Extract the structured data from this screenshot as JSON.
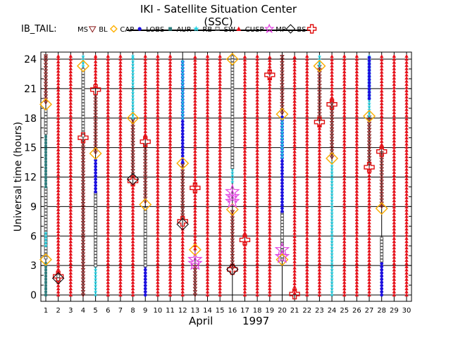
{
  "title": "IKI - Satellite Situation Center (SSC)",
  "satellite": "IB_TAIL:",
  "legend": [
    {
      "label": "MS",
      "symbol": "triangle-down",
      "color": "#8b1a1a"
    },
    {
      "label": "BL",
      "symbol": "diamond",
      "color": "#ffb000"
    },
    {
      "label": "CAP",
      "symbol": "dot",
      "color": "#1c10e0"
    },
    {
      "label": "LOBS",
      "symbol": "square-small",
      "color": "#2e7d7d"
    },
    {
      "label": "AUR",
      "symbol": "star",
      "color": "#22cfe0"
    },
    {
      "label": "RB",
      "symbol": "square-open",
      "color": "#555555"
    },
    {
      "label": "SW",
      "symbol": "triangle-up",
      "color": "#e8101a"
    },
    {
      "label": "CUSP",
      "symbol": "star-open",
      "color": "#e040e0"
    },
    {
      "label": "MP",
      "symbol": "diamond-open",
      "color": "#000000"
    },
    {
      "label": "BS",
      "symbol": "cross-open",
      "color": "#e01010"
    }
  ],
  "chart_data": {
    "type": "scatter",
    "title": "IKI - Satellite Situation Center (SSC)",
    "xlabel": "April",
    "xlabel_year": "1997",
    "ylabel": "Universal time  (hours)",
    "xlim": [
      1,
      30
    ],
    "ylim": [
      0,
      24
    ],
    "xticks": [
      1,
      2,
      3,
      4,
      5,
      6,
      7,
      8,
      9,
      10,
      11,
      12,
      13,
      14,
      15,
      16,
      17,
      18,
      19,
      20,
      21,
      22,
      23,
      24,
      25,
      26,
      27,
      28,
      29,
      30
    ],
    "yticks": [
      0,
      3,
      6,
      9,
      12,
      15,
      18,
      21,
      24
    ],
    "grid": true,
    "region_colors": {
      "MS": "#8b1a1a",
      "BL": "#ffb000",
      "CAP": "#1c10e0",
      "LOBS": "#2e7d7d",
      "AUR": "#22cfe0",
      "RB": "#555555",
      "SW": "#e8101a",
      "CUSP": "#e040e0",
      "MP": "#000000",
      "BS": "#e01010"
    },
    "tracks": [
      {
        "day": 1,
        "segments": [
          [
            "LOBS",
            0,
            3.5
          ],
          [
            "RB",
            3.8,
            11
          ],
          [
            "LOBS",
            11,
            16.5
          ],
          [
            "AUR",
            5,
            6.5
          ],
          [
            "RB",
            16.5,
            19
          ],
          [
            "MS",
            19.6,
            24.4
          ]
        ]
      },
      {
        "day": 2,
        "segments": [
          [
            "SW",
            0,
            1.5
          ],
          [
            "RB",
            1.6,
            2.2
          ],
          [
            "SW",
            2.3,
            24.4
          ]
        ]
      },
      {
        "day": 3,
        "segments": [
          [
            "SW",
            0,
            24.4
          ]
        ]
      },
      {
        "day": 4,
        "segments": [
          [
            "MS",
            0,
            15.8
          ],
          [
            "RB",
            16.2,
            23
          ],
          [
            "AUR",
            23.3,
            24.4
          ]
        ]
      },
      {
        "day": 5,
        "segments": [
          [
            "AUR",
            0,
            3
          ],
          [
            "RB",
            3,
            10.5
          ],
          [
            "CAP",
            10.5,
            14
          ],
          [
            "MS",
            14.5,
            20.5
          ],
          [
            "SW",
            21.2,
            24.4
          ]
        ]
      },
      {
        "day": 6,
        "segments": [
          [
            "SW",
            0,
            24.4
          ]
        ]
      },
      {
        "day": 7,
        "segments": [
          [
            "SW",
            0,
            24.4
          ]
        ]
      },
      {
        "day": 8,
        "segments": [
          [
            "SW",
            0,
            11.5
          ],
          [
            "MS",
            12,
            18
          ],
          [
            "AUR",
            18,
            24.4
          ]
        ]
      },
      {
        "day": 9,
        "segments": [
          [
            "CAP",
            0,
            3
          ],
          [
            "RB",
            3,
            9
          ],
          [
            "MS",
            9.5,
            15.5
          ],
          [
            "SW",
            16,
            24.4
          ]
        ]
      },
      {
        "day": 10,
        "segments": [
          [
            "SW",
            0,
            24.4
          ]
        ]
      },
      {
        "day": 11,
        "segments": [
          [
            "SW",
            0,
            24.4
          ]
        ]
      },
      {
        "day": 12,
        "segments": [
          [
            "SW",
            0,
            7
          ],
          [
            "MS",
            7.8,
            13.5
          ],
          [
            "CAP",
            13.5,
            23.8
          ],
          [
            "AUR",
            18,
            24
          ]
        ]
      },
      {
        "day": 13,
        "segments": [
          [
            "MS",
            0,
            3
          ],
          [
            "SW",
            4.7,
            24.4
          ]
        ]
      },
      {
        "day": 14,
        "segments": [
          [
            "SW",
            0,
            24.4
          ]
        ]
      },
      {
        "day": 15,
        "segments": [
          [
            "SW",
            0,
            24.4
          ]
        ]
      },
      {
        "day": 16,
        "segments": [
          [
            "MS",
            2.7,
            8.7
          ],
          [
            "AUR",
            11.5,
            13
          ],
          [
            "RB",
            13,
            24.2
          ]
        ]
      },
      {
        "day": 17,
        "segments": [
          [
            "SW",
            0,
            5.5
          ],
          [
            "SW",
            6,
            24.4
          ]
        ]
      },
      {
        "day": 18,
        "segments": [
          [
            "SW",
            0,
            24.4
          ]
        ]
      },
      {
        "day": 19,
        "segments": [
          [
            "SW",
            0,
            22.3
          ],
          [
            "SW",
            22.6,
            24.4
          ]
        ]
      },
      {
        "day": 20,
        "segments": [
          [
            "RB",
            3.6,
            8.5
          ],
          [
            "CAP",
            8.5,
            18.4
          ],
          [
            "AUR",
            14,
            18
          ],
          [
            "MS",
            18.5,
            24.4
          ]
        ]
      },
      {
        "day": 21,
        "segments": [
          [
            "SW",
            0.2,
            24.4
          ]
        ]
      },
      {
        "day": 22,
        "segments": [
          [
            "SW",
            0,
            24.4
          ]
        ]
      },
      {
        "day": 23,
        "segments": [
          [
            "SW",
            0,
            17.5
          ],
          [
            "MS",
            17.8,
            23.3
          ],
          [
            "AUR",
            23.3,
            24.4
          ]
        ]
      },
      {
        "day": 24,
        "segments": [
          [
            "AUR",
            0,
            13.5
          ],
          [
            "MS",
            14,
            19.5
          ],
          [
            "SW",
            19.8,
            24.4
          ]
        ]
      },
      {
        "day": 25,
        "segments": [
          [
            "SW",
            0,
            24.4
          ]
        ]
      },
      {
        "day": 26,
        "segments": [
          [
            "SW",
            0,
            24.4
          ]
        ]
      },
      {
        "day": 27,
        "segments": [
          [
            "SW",
            0,
            13
          ],
          [
            "MS",
            13.3,
            18.2
          ],
          [
            "AUR",
            18.2,
            24.4
          ],
          [
            "CAP",
            20,
            24.4
          ]
        ]
      },
      {
        "day": 28,
        "segments": [
          [
            "CAP",
            0,
            3.5
          ],
          [
            "RB",
            3.5,
            6
          ],
          [
            "MS",
            9,
            14.7
          ],
          [
            "SW",
            15,
            24.4
          ]
        ]
      },
      {
        "day": 29,
        "segments": [
          [
            "SW",
            0,
            24.4
          ]
        ]
      },
      {
        "day": 30,
        "segments": [
          [
            "SW",
            0,
            24.4
          ]
        ]
      }
    ],
    "markers": [
      {
        "day": 1,
        "ut": 3.6,
        "type": "MP"
      },
      {
        "day": 1,
        "ut": 3.6,
        "type": "BL"
      },
      {
        "day": 1,
        "ut": 19.4,
        "type": "MP"
      },
      {
        "day": 1,
        "ut": 19.4,
        "type": "BL"
      },
      {
        "day": 2,
        "ut": 1.9,
        "type": "BS"
      },
      {
        "day": 2,
        "ut": 1.7,
        "type": "MP"
      },
      {
        "day": 4,
        "ut": 16.0,
        "type": "BS"
      },
      {
        "day": 4,
        "ut": 23.3,
        "type": "MP"
      },
      {
        "day": 4,
        "ut": 23.3,
        "type": "BL"
      },
      {
        "day": 5,
        "ut": 14.4,
        "type": "MP"
      },
      {
        "day": 5,
        "ut": 14.4,
        "type": "BL"
      },
      {
        "day": 5,
        "ut": 20.9,
        "type": "BS"
      },
      {
        "day": 8,
        "ut": 11.6,
        "type": "BS"
      },
      {
        "day": 8,
        "ut": 11.8,
        "type": "MP"
      },
      {
        "day": 8,
        "ut": 18.0,
        "type": "MP"
      },
      {
        "day": 8,
        "ut": 18.0,
        "type": "BL"
      },
      {
        "day": 9,
        "ut": 9.2,
        "type": "MP"
      },
      {
        "day": 9,
        "ut": 9.2,
        "type": "BL"
      },
      {
        "day": 9,
        "ut": 15.6,
        "type": "BS"
      },
      {
        "day": 12,
        "ut": 7.5,
        "type": "BS"
      },
      {
        "day": 12,
        "ut": 7.2,
        "type": "MP"
      },
      {
        "day": 12,
        "ut": 13.4,
        "type": "MP"
      },
      {
        "day": 12,
        "ut": 13.4,
        "type": "BL"
      },
      {
        "day": 13,
        "ut": 3.2,
        "type": "CUSP"
      },
      {
        "day": 13,
        "ut": 3.6,
        "type": "CUSP"
      },
      {
        "day": 13,
        "ut": 4.6,
        "type": "MP"
      },
      {
        "day": 13,
        "ut": 4.6,
        "type": "BL"
      },
      {
        "day": 13,
        "ut": 10.9,
        "type": "BS"
      },
      {
        "day": 16,
        "ut": 2.6,
        "type": "BS"
      },
      {
        "day": 16,
        "ut": 2.6,
        "type": "MP"
      },
      {
        "day": 16,
        "ut": 8.7,
        "type": "MP"
      },
      {
        "day": 16,
        "ut": 8.7,
        "type": "BL"
      },
      {
        "day": 16,
        "ut": 9.5,
        "type": "CUSP"
      },
      {
        "day": 16,
        "ut": 10.0,
        "type": "CUSP"
      },
      {
        "day": 16,
        "ut": 10.5,
        "type": "CUSP"
      },
      {
        "day": 16,
        "ut": 24.0,
        "type": "MP"
      },
      {
        "day": 16,
        "ut": 24.0,
        "type": "BL"
      },
      {
        "day": 17,
        "ut": 5.6,
        "type": "BS"
      },
      {
        "day": 19,
        "ut": 22.4,
        "type": "BS"
      },
      {
        "day": 20,
        "ut": 3.6,
        "type": "MP"
      },
      {
        "day": 20,
        "ut": 3.6,
        "type": "BL"
      },
      {
        "day": 20,
        "ut": 4.6,
        "type": "CUSP"
      },
      {
        "day": 20,
        "ut": 3.9,
        "type": "CUSP"
      },
      {
        "day": 20,
        "ut": 18.4,
        "type": "MP"
      },
      {
        "day": 20,
        "ut": 18.4,
        "type": "BL"
      },
      {
        "day": 21,
        "ut": 0.1,
        "type": "BS"
      },
      {
        "day": 23,
        "ut": 17.6,
        "type": "BS"
      },
      {
        "day": 23,
        "ut": 23.3,
        "type": "MP"
      },
      {
        "day": 23,
        "ut": 23.3,
        "type": "BL"
      },
      {
        "day": 24,
        "ut": 13.9,
        "type": "MP"
      },
      {
        "day": 24,
        "ut": 13.9,
        "type": "BL"
      },
      {
        "day": 24,
        "ut": 19.4,
        "type": "BS"
      },
      {
        "day": 27,
        "ut": 13.0,
        "type": "BS"
      },
      {
        "day": 27,
        "ut": 18.2,
        "type": "MP"
      },
      {
        "day": 27,
        "ut": 18.2,
        "type": "BL"
      },
      {
        "day": 28,
        "ut": 8.8,
        "type": "MP"
      },
      {
        "day": 28,
        "ut": 8.8,
        "type": "BL"
      },
      {
        "day": 28,
        "ut": 14.6,
        "type": "BS"
      }
    ]
  }
}
